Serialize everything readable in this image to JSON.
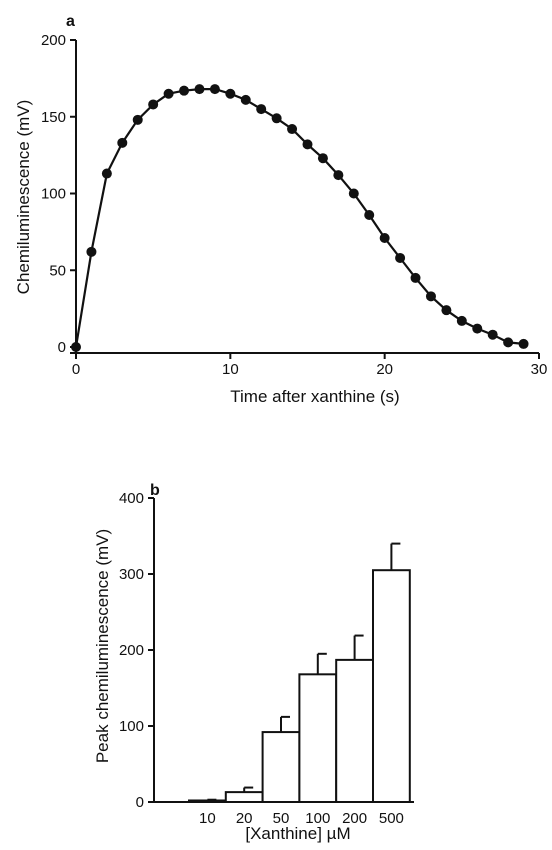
{
  "chart_data": [
    {
      "type": "line",
      "panel_label": "a",
      "title": "",
      "xlabel": "Time after xanthine (s)",
      "ylabel": "Chemiluminescence (mV)",
      "xlim": [
        0,
        30
      ],
      "ylim": [
        0,
        200
      ],
      "xticks": [
        "0",
        "10",
        "20",
        "30"
      ],
      "yticks": [
        "0",
        "50",
        "100",
        "150",
        "200"
      ],
      "grid": false,
      "series": [
        {
          "x": [
            0,
            1,
            2,
            3,
            4,
            5,
            6,
            7,
            8,
            9,
            10,
            11,
            12,
            13,
            14,
            15,
            16,
            17,
            18,
            19,
            20,
            21,
            22,
            23,
            24,
            25,
            26,
            27,
            28,
            29
          ],
          "values": [
            0,
            62,
            113,
            133,
            148,
            158,
            165,
            167,
            168,
            168,
            165,
            161,
            155,
            149,
            142,
            132,
            123,
            112,
            100,
            86,
            71,
            58,
            45,
            33,
            24,
            17,
            12,
            8,
            3,
            2
          ]
        }
      ]
    },
    {
      "type": "bar",
      "panel_label": "b",
      "title": "",
      "xlabel": "[Xanthine] µM",
      "ylabel": "Peak chemiluminescence (mV)",
      "categories": [
        "10",
        "20",
        "50",
        "100",
        "200",
        "500"
      ],
      "values": [
        2,
        13,
        92,
        168,
        187,
        305
      ],
      "errors": [
        1,
        6,
        20,
        27,
        32,
        35
      ],
      "ylim": [
        0,
        400
      ],
      "yticks": [
        "0",
        "100",
        "200",
        "300",
        "400"
      ],
      "grid": false
    }
  ]
}
